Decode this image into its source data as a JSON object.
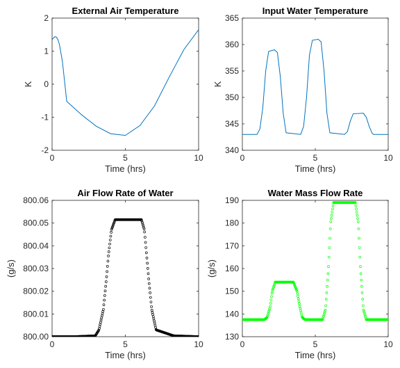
{
  "chart_data": [
    {
      "type": "line",
      "title": "External Air Temperature",
      "xlabel": "Time (hrs)",
      "ylabel": "K",
      "xlim": [
        0,
        10
      ],
      "ylim": [
        -2,
        2
      ],
      "xticks": [
        0,
        5,
        10
      ],
      "yticks": [
        -2,
        -1,
        0,
        1,
        2
      ],
      "grid": false,
      "color": "#0072BD",
      "marker": "none",
      "x": [
        0,
        0.1,
        0.2,
        0.3,
        0.4,
        0.5,
        0.6,
        0.7,
        0.8,
        1.0,
        2,
        3,
        4,
        5,
        6,
        7,
        8,
        9,
        10
      ],
      "y": [
        1.35,
        1.4,
        1.44,
        1.42,
        1.35,
        1.2,
        0.95,
        0.7,
        0.3,
        -0.52,
        -0.92,
        -1.27,
        -1.5,
        -1.55,
        -1.25,
        -0.65,
        0.22,
        1.05,
        1.65
      ]
    },
    {
      "type": "line",
      "title": "Input Water Temperature",
      "xlabel": "Time (hrs)",
      "ylabel": "K",
      "xlim": [
        0,
        10
      ],
      "ylim": [
        340,
        365
      ],
      "xticks": [
        0,
        5,
        10
      ],
      "yticks": [
        340,
        345,
        350,
        355,
        360,
        365
      ],
      "grid": false,
      "color": "#0072BD",
      "marker": "none",
      "x": [
        0,
        1.0,
        1.2,
        1.4,
        1.6,
        1.8,
        2.2,
        2.4,
        2.6,
        2.8,
        3.0,
        4.0,
        4.2,
        4.4,
        4.6,
        4.8,
        5.2,
        5.4,
        5.6,
        5.8,
        6.0,
        7.0,
        7.2,
        7.4,
        7.6,
        8.3,
        8.5,
        8.7,
        8.9,
        9.0,
        10
      ],
      "y": [
        343,
        343,
        344,
        348,
        355,
        358.7,
        359,
        358.5,
        354,
        347,
        343.3,
        343,
        344.5,
        350,
        358,
        360.8,
        361,
        360.5,
        355,
        347,
        343.3,
        343,
        343.5,
        345.5,
        346.9,
        347,
        346.2,
        344.5,
        343.2,
        343,
        343
      ]
    },
    {
      "type": "scatter",
      "title": "Air Flow Rate of Water",
      "xlabel": "Time (hrs)",
      "ylabel": "(g/s)",
      "xlim": [
        0,
        10
      ],
      "ylim": [
        800,
        800.06
      ],
      "xticks": [
        0,
        5,
        10
      ],
      "yticks": [
        800,
        800.01,
        800.02,
        800.03,
        800.04,
        800.05,
        800.06
      ],
      "grid": false,
      "color": "#000000",
      "marker": "circle-open",
      "x": [
        0,
        1.5,
        2.95,
        3.2,
        3.5,
        3.7,
        3.85,
        4.05,
        4.3,
        6.1,
        6.3,
        6.45,
        6.6,
        6.8,
        7.1,
        8.3,
        10
      ],
      "y": [
        800,
        800,
        800.0004,
        800.003,
        800.012,
        800.025,
        800.036,
        800.047,
        800.0515,
        800.0515,
        800.047,
        800.036,
        800.025,
        800.012,
        800.003,
        800.0004,
        800
      ]
    },
    {
      "type": "scatter",
      "title": "Water Mass Flow Rate",
      "xlabel": "Time (hrs)",
      "ylabel": "(g/s)",
      "xlim": [
        0,
        10
      ],
      "ylim": [
        130,
        190
      ],
      "xticks": [
        0,
        5,
        10
      ],
      "yticks": [
        130,
        140,
        150,
        160,
        170,
        180,
        190
      ],
      "grid": false,
      "color": "#00FF00",
      "marker": "circle-open",
      "x": [
        0,
        1.5,
        1.7,
        1.9,
        2.05,
        2.25,
        3.5,
        3.75,
        3.95,
        4.1,
        4.3,
        5.5,
        5.7,
        5.9,
        6.05,
        6.25,
        7.75,
        7.95,
        8.1,
        8.3,
        8.5,
        10
      ],
      "y": [
        137.5,
        137.5,
        138.5,
        143,
        150,
        154,
        154,
        150,
        143,
        138.5,
        137.5,
        137.5,
        142,
        160,
        180,
        189,
        189,
        180,
        160,
        142,
        137.5,
        137.5
      ]
    }
  ]
}
